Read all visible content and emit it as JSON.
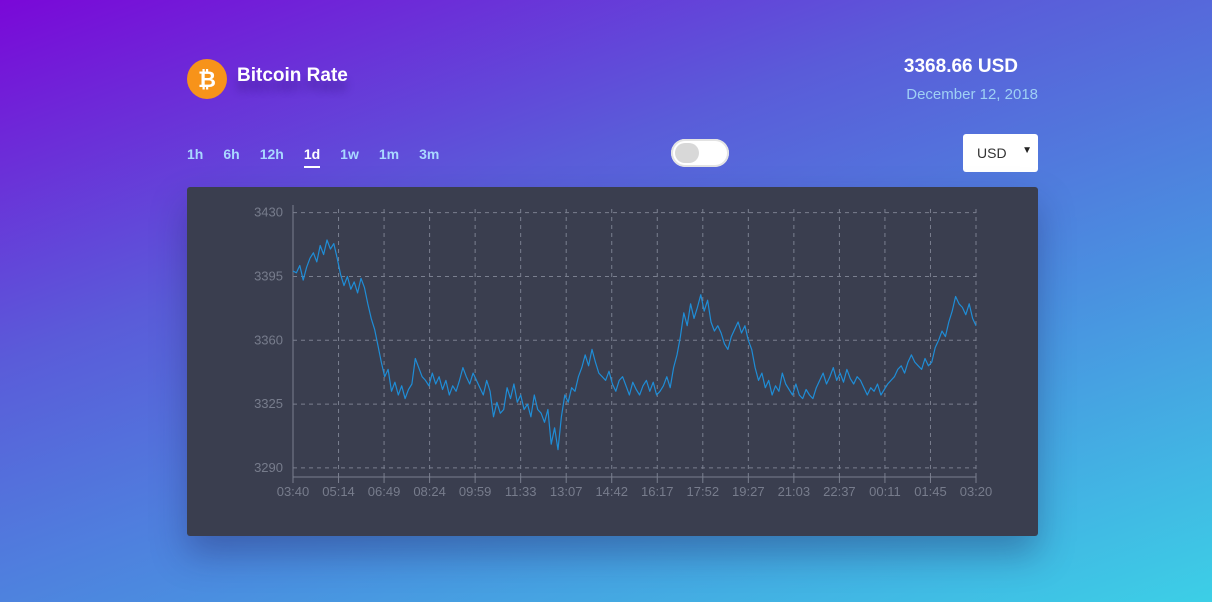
{
  "app": {
    "title": "Bitcoin Rate",
    "logo_icon": "bitcoin-icon",
    "logo_color": "#f7931a"
  },
  "price": {
    "value": "3368.66 USD",
    "date": "December 12, 2018"
  },
  "ranges": [
    {
      "label": "1h",
      "active": false
    },
    {
      "label": "6h",
      "active": false
    },
    {
      "label": "12h",
      "active": false
    },
    {
      "label": "1d",
      "active": true
    },
    {
      "label": "1w",
      "active": false
    },
    {
      "label": "1m",
      "active": false
    },
    {
      "label": "3m",
      "active": false
    }
  ],
  "toggle": {
    "on": false
  },
  "currency": {
    "selected": "USD"
  },
  "colors": {
    "line": "#1f8dd6",
    "card_bg": "#3a3e4f",
    "grid": "#7a7f8f"
  },
  "chart_data": {
    "type": "line",
    "title": "",
    "xlabel": "",
    "ylabel": "",
    "ylim": [
      3285,
      3432
    ],
    "yticks": [
      3290,
      3325,
      3360,
      3395,
      3430
    ],
    "xticks": [
      "03:40",
      "05:14",
      "06:49",
      "08:24",
      "09:59",
      "11:33",
      "13:07",
      "14:42",
      "16:17",
      "17:52",
      "19:27",
      "21:03",
      "22:37",
      "00:11",
      "01:45",
      "03:20"
    ],
    "grid": true,
    "series": [
      {
        "values": [
          3398,
          3397,
          3401,
          3393,
          3400,
          3405,
          3408,
          3403,
          3412,
          3407,
          3415,
          3410,
          3413,
          3405,
          3396,
          3390,
          3395,
          3388,
          3392,
          3386,
          3394,
          3389,
          3380,
          3372,
          3366,
          3357,
          3348,
          3340,
          3344,
          3332,
          3337,
          3330,
          3335,
          3328,
          3333,
          3336,
          3350,
          3345,
          3340,
          3338,
          3335,
          3342,
          3336,
          3340,
          3333,
          3338,
          3330,
          3335,
          3332,
          3338,
          3345,
          3340,
          3336,
          3342,
          3338,
          3334,
          3330,
          3338,
          3332,
          3318,
          3326,
          3320,
          3322,
          3334,
          3328,
          3336,
          3326,
          3330,
          3322,
          3325,
          3318,
          3330,
          3322,
          3320,
          3315,
          3322,
          3303,
          3312,
          3300,
          3318,
          3330,
          3326,
          3334,
          3332,
          3340,
          3345,
          3352,
          3346,
          3355,
          3348,
          3342,
          3340,
          3338,
          3343,
          3336,
          3332,
          3338,
          3340,
          3335,
          3330,
          3337,
          3333,
          3330,
          3335,
          3338,
          3332,
          3337,
          3330,
          3332,
          3335,
          3340,
          3334,
          3345,
          3352,
          3362,
          3375,
          3368,
          3380,
          3372,
          3378,
          3385,
          3376,
          3382,
          3370,
          3365,
          3368,
          3364,
          3358,
          3355,
          3362,
          3366,
          3370,
          3364,
          3368,
          3360,
          3355,
          3345,
          3338,
          3342,
          3334,
          3338,
          3330,
          3335,
          3332,
          3342,
          3336,
          3333,
          3330,
          3336,
          3330,
          3328,
          3333,
          3330,
          3328,
          3334,
          3338,
          3342,
          3336,
          3340,
          3345,
          3338,
          3342,
          3337,
          3344,
          3339,
          3336,
          3340,
          3338,
          3334,
          3330,
          3334,
          3332,
          3336,
          3330,
          3333,
          3336,
          3338,
          3340,
          3344,
          3346,
          3342,
          3348,
          3352,
          3348,
          3346,
          3344,
          3350,
          3346,
          3348,
          3356,
          3360,
          3365,
          3362,
          3370,
          3376,
          3384,
          3380,
          3378,
          3374,
          3380,
          3372,
          3368
        ]
      }
    ]
  }
}
